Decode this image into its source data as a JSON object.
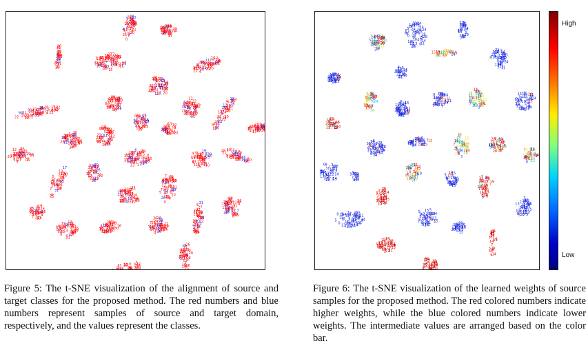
{
  "figure5": {
    "caption": "Figure 5: The t-SNE visualization of the alignment of source and target classes for the proposed method. The red numbers and blue numbers represent samples of source and target domain, respectively, and the values represent the classes.",
    "labels": [
      "7",
      "17",
      "31",
      "26",
      "16",
      "21",
      "24",
      "15",
      "13",
      "19",
      "5",
      "6",
      "25",
      "11",
      "27",
      "28",
      "0",
      "20",
      "10",
      "30",
      "12",
      "9",
      "4",
      "22"
    ],
    "colors": {
      "source": "#ff0000",
      "target": "#2020ff"
    }
  },
  "figure6": {
    "caption": "Figure 6: The t-SNE visualization of the learned weights of source samples for the proposed method. The red colored numbers indicate higher weights, while the blue colored numbers indicate lower weights. The intermediate values are arranged based on the color bar.",
    "labels": [
      "31",
      "15",
      "14",
      "24",
      "13",
      "11",
      "0",
      "7",
      "19",
      "28",
      "5",
      "9"
    ],
    "colors": {
      "high": "#d40000",
      "low": "#1020e0"
    },
    "colorbar": {
      "high_label": "High",
      "low_label": "Low"
    }
  }
}
